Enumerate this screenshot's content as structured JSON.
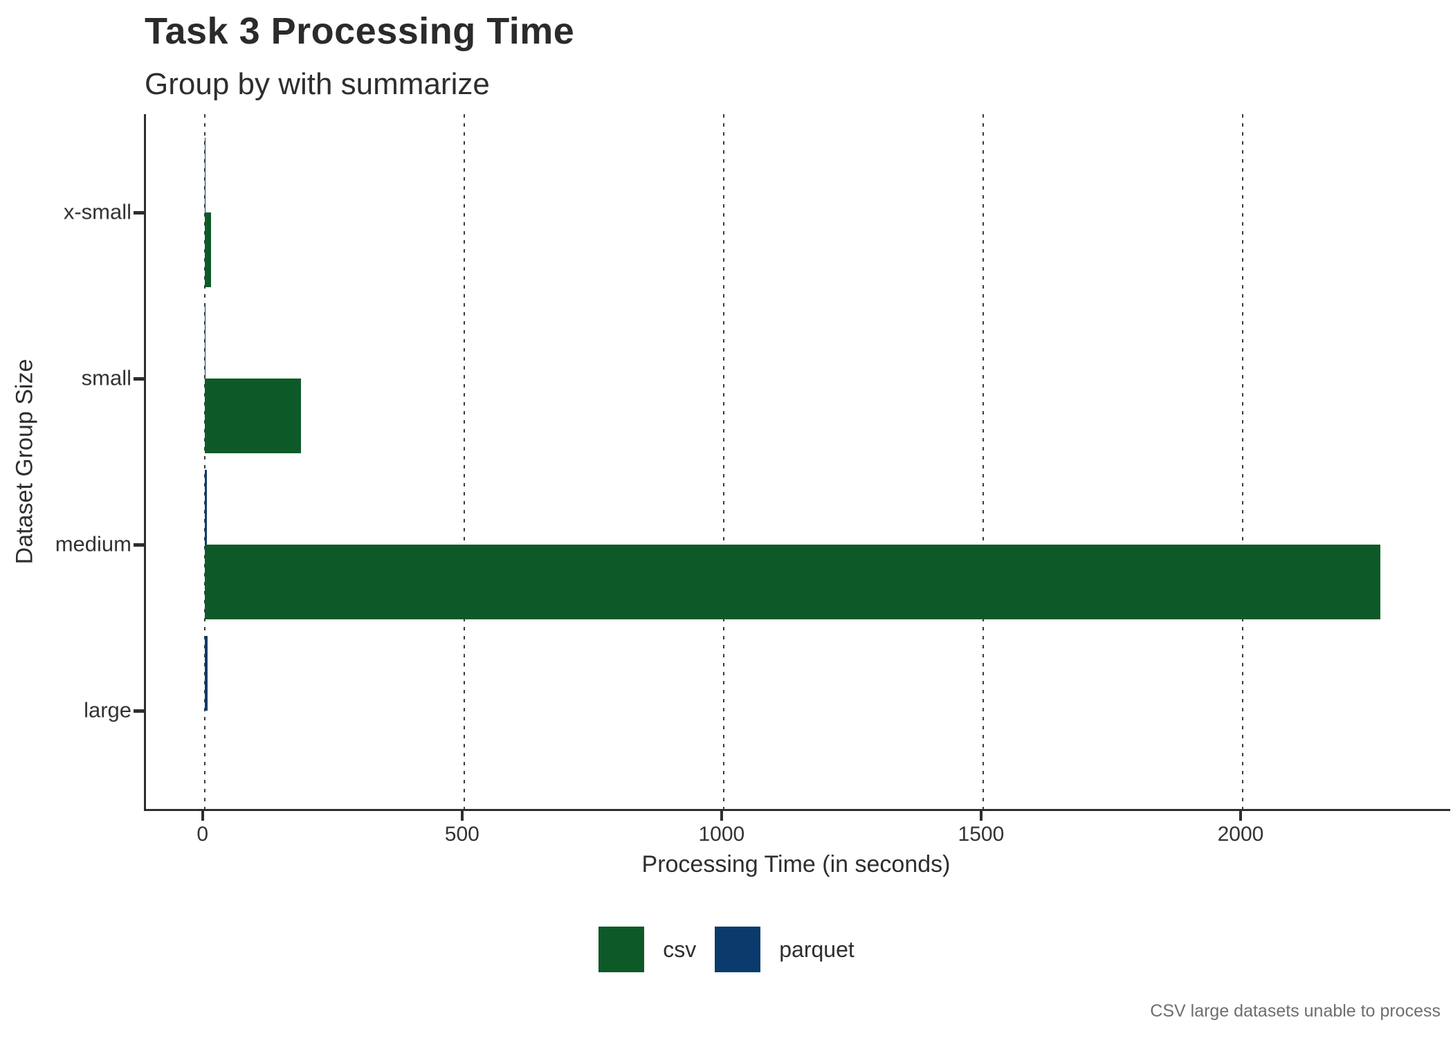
{
  "header": {
    "title": "Task 3 Processing Time",
    "subtitle": "Group by with summarize"
  },
  "caption": "CSV large datasets unable to process",
  "chart_data": {
    "type": "bar",
    "orientation": "horizontal",
    "title": "Task 3 Processing Time",
    "subtitle": "Group by with summarize",
    "xlabel": "Processing Time (in seconds)",
    "ylabel": "Dataset Group Size",
    "caption": "CSV large datasets unable to process",
    "categories": [
      "x-small",
      "small",
      "medium",
      "large"
    ],
    "series": [
      {
        "name": "csv",
        "color": "#0D5A28",
        "values": [
          12,
          185,
          2265,
          null
        ]
      },
      {
        "name": "parquet",
        "color": "#0B3B6C",
        "values": [
          0.5,
          2,
          4,
          6
        ]
      }
    ],
    "x_ticks": [
      0,
      500,
      1000,
      1500,
      2000
    ],
    "xlim": [
      -113,
      2400
    ],
    "grid": "vertical-dashed-major-x",
    "legend_position": "bottom",
    "missing_data_note": "csv value for 'large' is absent (unable to process)"
  },
  "colors": {
    "csv": "#0D5A28",
    "parquet": "#0B3B6C",
    "axis_line": "#2e2e2e",
    "grid": "#3d3d3d",
    "text": "#2e2e2e",
    "caption_text": "#6e6e6e",
    "background": "#ffffff"
  }
}
